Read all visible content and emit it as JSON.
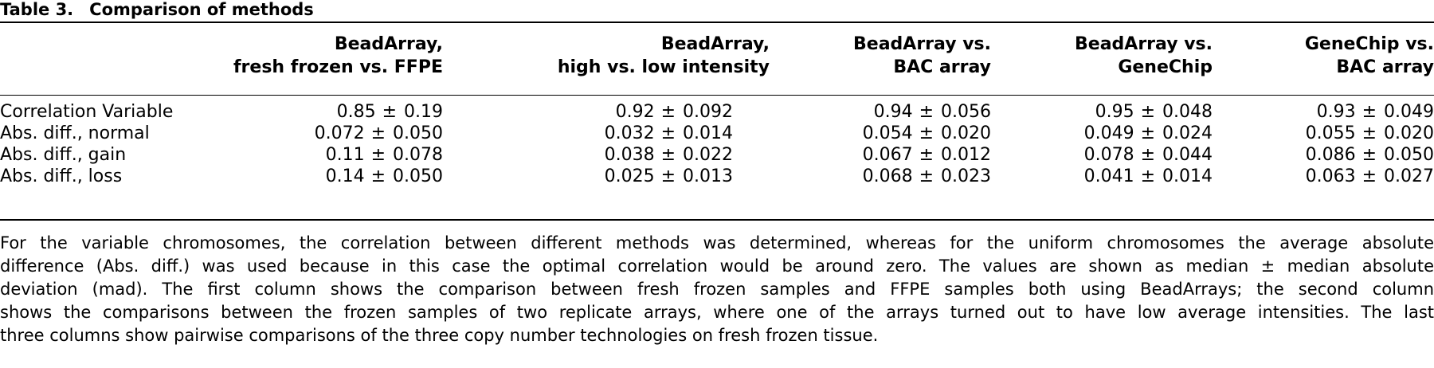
{
  "table": {
    "caption_label": "Table 3.",
    "caption_title": "Comparison of methods",
    "columns": [
      {
        "line1": "BeadArray,",
        "line2": "fresh frozen vs. FFPE"
      },
      {
        "line1": "BeadArray,",
        "line2": "high vs. low intensity"
      },
      {
        "line1": "BeadArray vs.",
        "line2": "BAC array"
      },
      {
        "line1": "BeadArray vs.",
        "line2": "GeneChip"
      },
      {
        "line1": "GeneChip vs.",
        "line2": "BAC array"
      }
    ],
    "rows": [
      {
        "label": "Correlation Variable",
        "cells": [
          {
            "median": "0.85",
            "pm": "±",
            "mad": "0.19"
          },
          {
            "median": "0.92",
            "pm": "±",
            "mad": "0.092"
          },
          {
            "median": "0.94",
            "pm": "±",
            "mad": "0.056"
          },
          {
            "median": "0.95",
            "pm": "±",
            "mad": "0.048"
          },
          {
            "median": "0.93",
            "pm": "±",
            "mad": "0.049"
          }
        ]
      },
      {
        "label": "Abs. diff., normal",
        "cells": [
          {
            "median": "0.072",
            "pm": "±",
            "mad": "0.050"
          },
          {
            "median": "0.032",
            "pm": "±",
            "mad": "0.014"
          },
          {
            "median": "0.054",
            "pm": "±",
            "mad": "0.020"
          },
          {
            "median": "0.049",
            "pm": "±",
            "mad": "0.024"
          },
          {
            "median": "0.055",
            "pm": "±",
            "mad": "0.020"
          }
        ]
      },
      {
        "label": "Abs. diff., gain",
        "cells": [
          {
            "median": "0.11",
            "pm": "±",
            "mad": "0.078"
          },
          {
            "median": "0.038",
            "pm": "±",
            "mad": "0.022"
          },
          {
            "median": "0.067",
            "pm": "±",
            "mad": "0.012"
          },
          {
            "median": "0.078",
            "pm": "±",
            "mad": "0.044"
          },
          {
            "median": "0.086",
            "pm": "±",
            "mad": "0.050"
          }
        ]
      },
      {
        "label": "Abs. diff., loss",
        "cells": [
          {
            "median": "0.14",
            "pm": "±",
            "mad": "0.050"
          },
          {
            "median": "0.025",
            "pm": "±",
            "mad": "0.013"
          },
          {
            "median": "0.068",
            "pm": "±",
            "mad": "0.023"
          },
          {
            "median": "0.041",
            "pm": "±",
            "mad": "0.014"
          },
          {
            "median": "0.063",
            "pm": "±",
            "mad": "0.027"
          }
        ]
      }
    ],
    "footnote_lines": [
      "For the variable chromosomes, the correlation between different methods was determined, whereas for the uniform chromosomes the average absolute",
      "difference (Abs. diff.) was used because in this case the optimal correlation would be around zero. The values are shown as median ± median absolute",
      "deviation (mad). The first column shows the comparison between fresh frozen samples and FFPE samples both using BeadArrays; the second column",
      "shows the comparisons between the frozen samples of two replicate arrays, where one of the arrays turned out to have low average intensities. The last",
      "three columns show pairwise comparisons of the three copy number technologies on fresh frozen tissue."
    ]
  }
}
